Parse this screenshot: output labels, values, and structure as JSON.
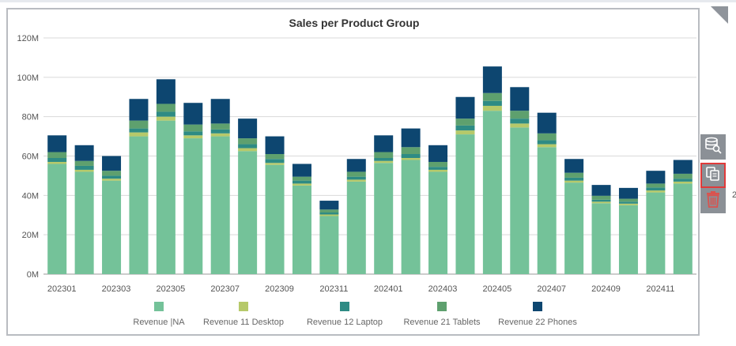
{
  "window": {
    "edge_text": "2"
  },
  "toolbar": {
    "icons": [
      "database-search-icon",
      "copy-icon",
      "trash-icon"
    ],
    "trash_color": "#d9534f"
  },
  "chart_data": {
    "type": "bar",
    "stacked": true,
    "title": "Sales per Product Group",
    "xlabel": "",
    "ylabel": "",
    "ylim": [
      0,
      120000000
    ],
    "yticks": [
      0,
      20000000,
      40000000,
      60000000,
      80000000,
      100000000,
      120000000
    ],
    "ytick_labels": [
      "0M",
      "20M",
      "40M",
      "60M",
      "80M",
      "100M",
      "120M"
    ],
    "categories": [
      "202301",
      "202302",
      "202303",
      "202304",
      "202305",
      "202306",
      "202307",
      "202308",
      "202309",
      "202310",
      "202311",
      "202312",
      "202401",
      "202402",
      "202403",
      "202404",
      "202405",
      "202406",
      "202407",
      "202408",
      "202409",
      "202410",
      "202411",
      "202412"
    ],
    "x_tick_labels": [
      "202301",
      "",
      "202303",
      "",
      "202305",
      "",
      "202307",
      "",
      "202309",
      "",
      "202311",
      "",
      "202401",
      "",
      "202403",
      "",
      "202405",
      "",
      "202407",
      "",
      "202409",
      "",
      "202411",
      ""
    ],
    "grid": true,
    "legend_position": "bottom",
    "series": [
      {
        "name": "Revenue |NA",
        "color": "#74c299",
        "values": [
          56000000,
          52000000,
          47500000,
          70000000,
          78000000,
          69000000,
          70000000,
          62500000,
          55500000,
          45000000,
          29500000,
          47000000,
          56500000,
          58000000,
          52000000,
          71000000,
          83000000,
          74500000,
          64500000,
          46500000,
          36000000,
          35000000,
          41500000,
          46000000
        ]
      },
      {
        "name": "Revenue 11 Desktop",
        "color": "#b6c96a",
        "values": [
          1000000,
          1000000,
          1000000,
          2000000,
          2000000,
          1500000,
          1500000,
          1500000,
          1000000,
          1000000,
          800000,
          1000000,
          1000000,
          1000000,
          1000000,
          2000000,
          2500000,
          2000000,
          1500000,
          1000000,
          800000,
          800000,
          1000000,
          1000000
        ]
      },
      {
        "name": "Revenue 12 Laptop",
        "color": "#2e8b84",
        "values": [
          2000000,
          2000000,
          1500000,
          2000000,
          2500000,
          2000000,
          2000000,
          2000000,
          2000000,
          1500000,
          1000000,
          1500000,
          1500000,
          2000000,
          1500000,
          2500000,
          2500000,
          2500000,
          2000000,
          1500000,
          1000000,
          1000000,
          1500000,
          1500000
        ]
      },
      {
        "name": "Revenue 21 Tablets",
        "color": "#5ea06e",
        "values": [
          3000000,
          2500000,
          2500000,
          4000000,
          4000000,
          3500000,
          3000000,
          3000000,
          2500000,
          2000000,
          1500000,
          2500000,
          3000000,
          3500000,
          2500000,
          3500000,
          4000000,
          4000000,
          3500000,
          2500000,
          2000000,
          1500000,
          2000000,
          2500000
        ]
      },
      {
        "name": "Revenue 22 Phones",
        "color": "#0d4670",
        "values": [
          8500000,
          8000000,
          7500000,
          11000000,
          12500000,
          11000000,
          12500000,
          10000000,
          9000000,
          6500000,
          4500000,
          6500000,
          8500000,
          9500000,
          8500000,
          11000000,
          13500000,
          12000000,
          10500000,
          7000000,
          5500000,
          5500000,
          6500000,
          7000000
        ]
      }
    ]
  }
}
